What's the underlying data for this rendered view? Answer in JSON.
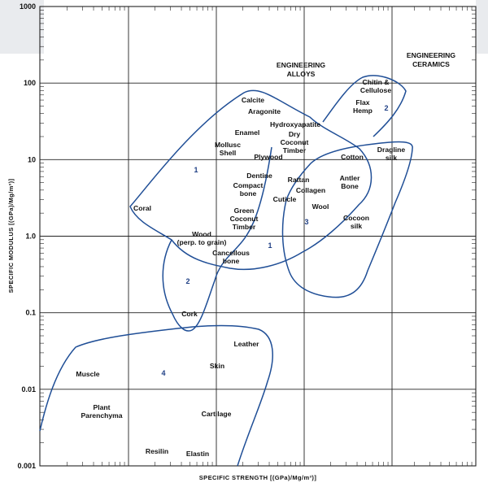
{
  "chart_data": {
    "type": "scatter",
    "subtype": "material-property-map",
    "title": "",
    "xlabel": "SPECIFIC STRENGTH [(GPa)/Mg/m³)]",
    "ylabel": "SPECIFIC MODULUS [(GPa)/Mg/m³)]",
    "yscale": "log",
    "ylim": [
      0.001,
      1000
    ],
    "yticks": [
      {
        "value": 0.001,
        "label": "0.001"
      },
      {
        "value": 0.01,
        "label": "0.01"
      },
      {
        "value": 0.1,
        "label": "0.1"
      },
      {
        "value": 1,
        "label": "1.0"
      },
      {
        "value": 10,
        "label": "10"
      },
      {
        "value": 100,
        "label": "100"
      },
      {
        "value": 1000,
        "label": "1000"
      }
    ],
    "grid": true,
    "group_labels": [
      {
        "lines": [
          "ENGINEERING",
          "ALLOYS"
        ]
      },
      {
        "lines": [
          "ENGINEERING",
          "CERAMICS"
        ]
      }
    ],
    "materials": [
      {
        "lines": [
          "Calcite"
        ],
        "y": 65
      },
      {
        "lines": [
          "Aragonite"
        ],
        "y": 40
      },
      {
        "lines": [
          "Hydroxyapatite"
        ],
        "y": 26
      },
      {
        "lines": [
          "Chitin &",
          "Cellulose"
        ],
        "y": 80
      },
      {
        "lines": [
          "Flax",
          "Hemp"
        ],
        "y": 40
      },
      {
        "lines": [
          "Enamel"
        ],
        "y": 17
      },
      {
        "lines": [
          "Dry",
          "Coconut",
          "Timber"
        ],
        "y": 11
      },
      {
        "lines": [
          "Mollusc",
          "Shell"
        ],
        "y": 10
      },
      {
        "lines": [
          "Plywood"
        ],
        "y": 11
      },
      {
        "lines": [
          "Cotton"
        ],
        "y": 11
      },
      {
        "lines": [
          "Dragline",
          "silk"
        ],
        "y": 9
      },
      {
        "lines": [
          "Dentine"
        ],
        "y": 6
      },
      {
        "lines": [
          "Rattan"
        ],
        "y": 5.5
      },
      {
        "lines": [
          "Antler",
          "Bone"
        ],
        "y": 4.5
      },
      {
        "lines": [
          "Compact",
          "bone"
        ],
        "y": 4
      },
      {
        "lines": [
          "Collagen"
        ],
        "y": 4
      },
      {
        "lines": [
          "Cuticle"
        ],
        "y": 3.2
      },
      {
        "lines": [
          "Coral"
        ],
        "y": 2.5
      },
      {
        "lines": [
          "Wool"
        ],
        "y": 2.5
      },
      {
        "lines": [
          "Green",
          "Coconut",
          "Timber"
        ],
        "y": 1.7
      },
      {
        "lines": [
          "Cocoon",
          "silk"
        ],
        "y": 1.4
      },
      {
        "lines": [
          "Wood",
          "(perp. to grain)"
        ],
        "y": 0.95
      },
      {
        "lines": [
          "Cancellous",
          "bone"
        ],
        "y": 0.55
      },
      {
        "lines": [
          "Cork"
        ],
        "y": 0.08
      },
      {
        "lines": [
          "Leather"
        ],
        "y": 0.04
      },
      {
        "lines": [
          "Skin"
        ],
        "y": 0.02
      },
      {
        "lines": [
          "Muscle"
        ],
        "y": 0.015
      },
      {
        "lines": [
          "Plant",
          "Parenchyma"
        ],
        "y": 0.0045
      },
      {
        "lines": [
          "Cartilage"
        ],
        "y": 0.004
      },
      {
        "lines": [
          "Resilin"
        ],
        "y": 0.0015
      },
      {
        "lines": [
          "Elastin"
        ],
        "y": 0.0014
      }
    ],
    "region_numbers": [
      "1",
      "1",
      "2",
      "2",
      "3",
      "4"
    ]
  }
}
